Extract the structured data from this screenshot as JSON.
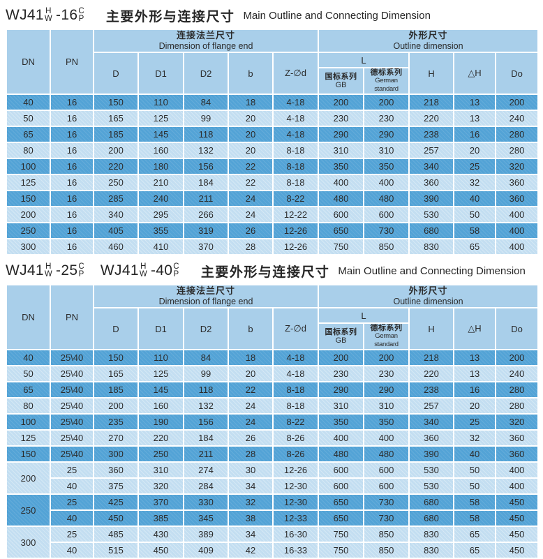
{
  "colors": {
    "header_bg": "#a9cfea",
    "row_dark": "#53a3d6",
    "row_light": "#c3def1",
    "grid": "#ffffff",
    "text": "#2b2b2b"
  },
  "tables": [
    {
      "models": [
        {
          "base": "WJ41",
          "s1t": "H",
          "s1b": "W",
          "rating": "-16",
          "s2t": "C",
          "s2b": "P"
        }
      ],
      "title_cn": "主要外形与连接尺寸",
      "title_en": "Main Outline and Connecting Dimension",
      "header": {
        "dn": "DN",
        "pn": "PN",
        "flange_cn": "连接法兰尺寸",
        "flange_en": "Dimension of flange end",
        "outline_cn": "外形尺寸",
        "outline_en": "Outline dimension",
        "d": "D",
        "d1": "D1",
        "d2": "D2",
        "b": "b",
        "zd": "Z-∅d",
        "l": "L",
        "gb_cn": "国标系列",
        "gb_en": "GB",
        "de_cn": "德标系列",
        "de_en": "German standard",
        "h": "H",
        "dh": "△H",
        "do": "Do"
      },
      "rows": [
        {
          "shade": "dark",
          "dn": "40",
          "pn": "16",
          "d": "150",
          "d1": "110",
          "d2": "84",
          "b": "18",
          "zd": "4-18",
          "l_gb": "200",
          "l_de": "200",
          "h": "218",
          "dh": "13",
          "do": "200"
        },
        {
          "shade": "light",
          "dn": "50",
          "pn": "16",
          "d": "165",
          "d1": "125",
          "d2": "99",
          "b": "20",
          "zd": "4-18",
          "l_gb": "230",
          "l_de": "230",
          "h": "220",
          "dh": "13",
          "do": "240"
        },
        {
          "shade": "dark",
          "dn": "65",
          "pn": "16",
          "d": "185",
          "d1": "145",
          "d2": "118",
          "b": "20",
          "zd": "4-18",
          "l_gb": "290",
          "l_de": "290",
          "h": "238",
          "dh": "16",
          "do": "280"
        },
        {
          "shade": "light",
          "dn": "80",
          "pn": "16",
          "d": "200",
          "d1": "160",
          "d2": "132",
          "b": "20",
          "zd": "8-18",
          "l_gb": "310",
          "l_de": "310",
          "h": "257",
          "dh": "20",
          "do": "280"
        },
        {
          "shade": "dark",
          "dn": "100",
          "pn": "16",
          "d": "220",
          "d1": "180",
          "d2": "156",
          "b": "22",
          "zd": "8-18",
          "l_gb": "350",
          "l_de": "350",
          "h": "340",
          "dh": "25",
          "do": "320"
        },
        {
          "shade": "light",
          "dn": "125",
          "pn": "16",
          "d": "250",
          "d1": "210",
          "d2": "184",
          "b": "22",
          "zd": "8-18",
          "l_gb": "400",
          "l_de": "400",
          "h": "360",
          "dh": "32",
          "do": "360"
        },
        {
          "shade": "dark",
          "dn": "150",
          "pn": "16",
          "d": "285",
          "d1": "240",
          "d2": "211",
          "b": "24",
          "zd": "8-22",
          "l_gb": "480",
          "l_de": "480",
          "h": "390",
          "dh": "40",
          "do": "360"
        },
        {
          "shade": "light",
          "dn": "200",
          "pn": "16",
          "d": "340",
          "d1": "295",
          "d2": "266",
          "b": "24",
          "zd": "12-22",
          "l_gb": "600",
          "l_de": "600",
          "h": "530",
          "dh": "50",
          "do": "400"
        },
        {
          "shade": "dark",
          "dn": "250",
          "pn": "16",
          "d": "405",
          "d1": "355",
          "d2": "319",
          "b": "26",
          "zd": "12-26",
          "l_gb": "650",
          "l_de": "730",
          "h": "680",
          "dh": "58",
          "do": "400"
        },
        {
          "shade": "light",
          "dn": "300",
          "pn": "16",
          "d": "460",
          "d1": "410",
          "d2": "370",
          "b": "28",
          "zd": "12-26",
          "l_gb": "750",
          "l_de": "850",
          "h": "830",
          "dh": "65",
          "do": "400"
        }
      ]
    },
    {
      "models": [
        {
          "base": "WJ41",
          "s1t": "H",
          "s1b": "W",
          "rating": "-25",
          "s2t": "C",
          "s2b": "P"
        },
        {
          "base": "WJ41",
          "s1t": "H",
          "s1b": "W",
          "rating": "-40",
          "s2t": "C",
          "s2b": "P"
        }
      ],
      "title_cn": "主要外形与连接尺寸",
      "title_en": "Main Outline and Connecting Dimension",
      "header": {
        "dn": "DN",
        "pn": "PN",
        "flange_cn": "连接法兰尺寸",
        "flange_en": "Dimension of flange end",
        "outline_cn": "外形尺寸",
        "outline_en": "Outline dimension",
        "d": "D",
        "d1": "D1",
        "d2": "D2",
        "b": "b",
        "zd": "Z-∅d",
        "l": "L",
        "gb_cn": "国标系列",
        "gb_en": "GB",
        "de_cn": "德标系列",
        "de_en": "German standard",
        "h": "H",
        "dh": "△H",
        "do": "Do"
      },
      "rows": [
        {
          "shade": "dark",
          "dn": "40",
          "pn": "25\\40",
          "d": "150",
          "d1": "110",
          "d2": "84",
          "b": "18",
          "zd": "4-18",
          "l_gb": "200",
          "l_de": "200",
          "h": "218",
          "dh": "13",
          "do": "200"
        },
        {
          "shade": "light",
          "dn": "50",
          "pn": "25\\40",
          "d": "165",
          "d1": "125",
          "d2": "99",
          "b": "20",
          "zd": "4-18",
          "l_gb": "230",
          "l_de": "230",
          "h": "220",
          "dh": "13",
          "do": "240"
        },
        {
          "shade": "dark",
          "dn": "65",
          "pn": "25\\40",
          "d": "185",
          "d1": "145",
          "d2": "118",
          "b": "22",
          "zd": "8-18",
          "l_gb": "290",
          "l_de": "290",
          "h": "238",
          "dh": "16",
          "do": "280"
        },
        {
          "shade": "light",
          "dn": "80",
          "pn": "25\\40",
          "d": "200",
          "d1": "160",
          "d2": "132",
          "b": "24",
          "zd": "8-18",
          "l_gb": "310",
          "l_de": "310",
          "h": "257",
          "dh": "20",
          "do": "280"
        },
        {
          "shade": "dark",
          "dn": "100",
          "pn": "25\\40",
          "d": "235",
          "d1": "190",
          "d2": "156",
          "b": "24",
          "zd": "8-22",
          "l_gb": "350",
          "l_de": "350",
          "h": "340",
          "dh": "25",
          "do": "320"
        },
        {
          "shade": "light",
          "dn": "125",
          "pn": "25\\40",
          "d": "270",
          "d1": "220",
          "d2": "184",
          "b": "26",
          "zd": "8-26",
          "l_gb": "400",
          "l_de": "400",
          "h": "360",
          "dh": "32",
          "do": "360"
        },
        {
          "shade": "dark",
          "dn": "150",
          "pn": "25\\40",
          "d": "300",
          "d1": "250",
          "d2": "211",
          "b": "28",
          "zd": "8-26",
          "l_gb": "480",
          "l_de": "480",
          "h": "390",
          "dh": "40",
          "do": "360"
        },
        {
          "shade": "light",
          "dn": "200",
          "dn_span": 2,
          "pn": "25",
          "d": "360",
          "d1": "310",
          "d2": "274",
          "b": "30",
          "zd": "12-26",
          "l_gb": "600",
          "l_de": "600",
          "h": "530",
          "dh": "50",
          "do": "400"
        },
        {
          "shade": "light",
          "dn": null,
          "pn": "40",
          "d": "375",
          "d1": "320",
          "d2": "284",
          "b": "34",
          "zd": "12-30",
          "l_gb": "600",
          "l_de": "600",
          "h": "530",
          "dh": "50",
          "do": "400"
        },
        {
          "shade": "dark",
          "dn": "250",
          "dn_span": 2,
          "pn": "25",
          "d": "425",
          "d1": "370",
          "d2": "330",
          "b": "32",
          "zd": "12-30",
          "l_gb": "650",
          "l_de": "730",
          "h": "680",
          "dh": "58",
          "do": "450"
        },
        {
          "shade": "dark",
          "dn": null,
          "pn": "40",
          "d": "450",
          "d1": "385",
          "d2": "345",
          "b": "38",
          "zd": "12-33",
          "l_gb": "650",
          "l_de": "730",
          "h": "680",
          "dh": "58",
          "do": "450"
        },
        {
          "shade": "light",
          "dn": "300",
          "dn_span": 2,
          "pn": "25",
          "d": "485",
          "d1": "430",
          "d2": "389",
          "b": "34",
          "zd": "16-30",
          "l_gb": "750",
          "l_de": "850",
          "h": "830",
          "dh": "65",
          "do": "450"
        },
        {
          "shade": "light",
          "dn": null,
          "pn": "40",
          "d": "515",
          "d1": "450",
          "d2": "409",
          "b": "42",
          "zd": "16-33",
          "l_gb": "750",
          "l_de": "850",
          "h": "830",
          "dh": "65",
          "do": "450"
        }
      ]
    }
  ]
}
